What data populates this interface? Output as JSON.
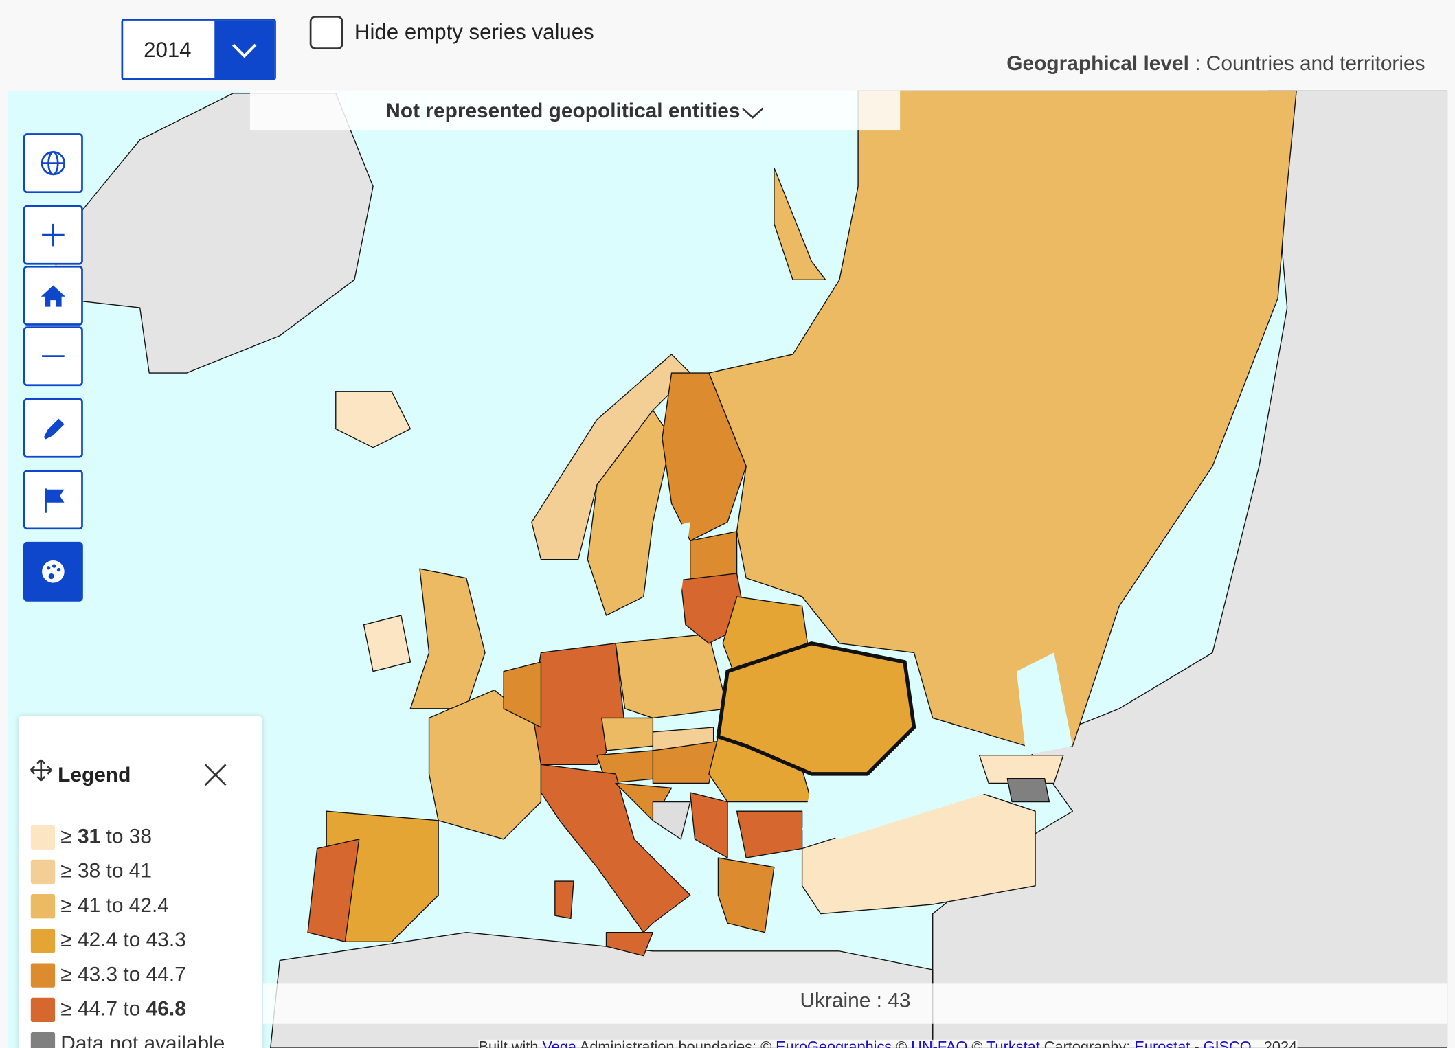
{
  "toolbar": {
    "year": "2014",
    "checkbox_label": "Hide empty series values",
    "geo_label": "Geographical level",
    "geo_value": ": Countries and territories"
  },
  "map": {
    "not_represented": "Not represented geopolitical entities"
  },
  "legend": {
    "title": "Legend",
    "classes": [
      {
        "symbol": "≥",
        "from": 31,
        "joiner": "to",
        "to": 38,
        "color": "#fce5c3"
      },
      {
        "symbol": "≥",
        "from": 38,
        "joiner": "to",
        "to": 41,
        "color": "#f3cf95"
      },
      {
        "symbol": "≥",
        "from": 41,
        "joiner": "to",
        "to": 42.4,
        "color": "#ebba62"
      },
      {
        "symbol": "≥",
        "from": 42.4,
        "joiner": "to",
        "to": 43.3,
        "color": "#e4a535"
      },
      {
        "symbol": "≥",
        "from": 43.3,
        "joiner": "to",
        "to": 44.7,
        "color": "#dc8b2e"
      },
      {
        "symbol": "≥",
        "from": 44.7,
        "joiner": "to",
        "to": 46.8,
        "color": "#d6672e"
      }
    ],
    "na": {
      "label": "Data not available",
      "color": "#808080"
    }
  },
  "tooltip": {
    "name": "Ukraine",
    "separator": ":",
    "value": 43
  },
  "attribution": [
    {
      "text": "Built with",
      "link": false
    },
    {
      "text": "Vega",
      "link": true
    },
    {
      "text": "Administration boundaries: ©",
      "link": false
    },
    {
      "text": "EuroGeographics",
      "link": true
    },
    {
      "text": "©",
      "link": false
    },
    {
      "text": "UN-FAO",
      "link": true
    },
    {
      "text": "©",
      "link": false
    },
    {
      "text": "Turkstat",
      "link": true
    },
    {
      "text": "Cartography:",
      "link": false
    },
    {
      "text": "Eurostat",
      "link": true
    },
    {
      "text": "-",
      "link": false
    },
    {
      "text": "GISCO",
      "link": true
    },
    {
      "text": ", 2024",
      "link": false
    }
  ]
}
